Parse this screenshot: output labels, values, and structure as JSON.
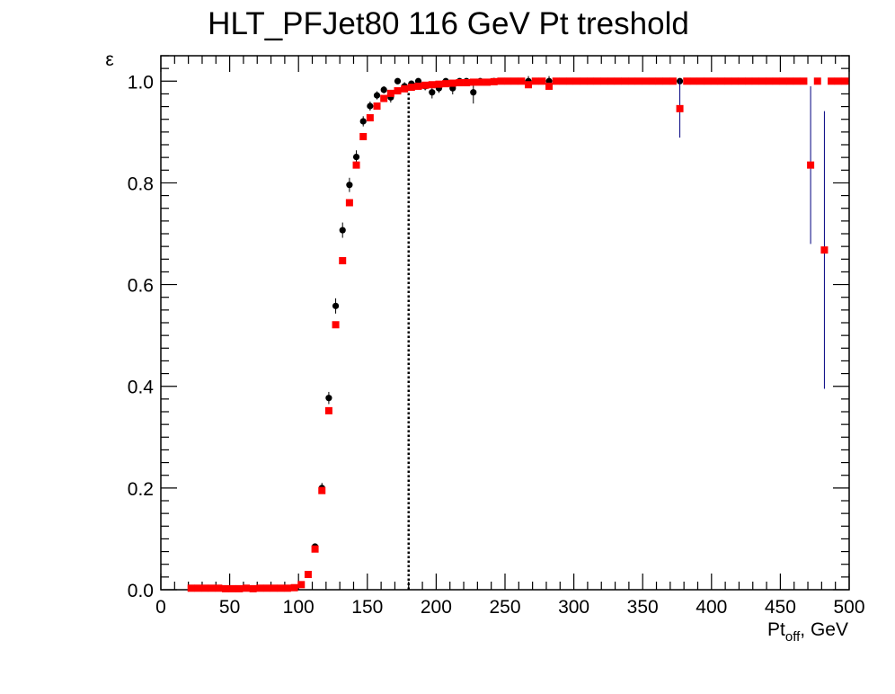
{
  "chart_data": {
    "type": "scatter",
    "title": "HLT_PFJet80 116 GeV Pt treshold",
    "xlabel_main": "Pt",
    "xlabel_sub": "off",
    "xlabel_unit": ", GeV",
    "ylabel": "ε",
    "xlim": [
      0,
      500
    ],
    "ylim": [
      0,
      1.05
    ],
    "x_ticks": [
      "0",
      "50",
      "100",
      "150",
      "200",
      "250",
      "300",
      "350",
      "400",
      "450",
      "500"
    ],
    "y_ticks": [
      "0.0",
      "0.2",
      "0.4",
      "0.6",
      "0.8",
      "1.0"
    ],
    "threshold_line_x": 180,
    "grid": false,
    "series": [
      {
        "color": "#000000",
        "marker": "circle",
        "error_color": "#000000",
        "points": [
          {
            "x": 112,
            "y": 0.085,
            "err": 0.005
          },
          {
            "x": 117,
            "y": 0.2,
            "err": 0.01
          },
          {
            "x": 122,
            "y": 0.377,
            "err": 0.012
          },
          {
            "x": 127,
            "y": 0.558,
            "err": 0.015
          },
          {
            "x": 132,
            "y": 0.707,
            "err": 0.015
          },
          {
            "x": 137,
            "y": 0.796,
            "err": 0.014
          },
          {
            "x": 142,
            "y": 0.851,
            "err": 0.013
          },
          {
            "x": 147,
            "y": 0.921,
            "err": 0.01
          },
          {
            "x": 152,
            "y": 0.951,
            "err": 0.009
          },
          {
            "x": 157,
            "y": 0.972,
            "err": 0.008
          },
          {
            "x": 162,
            "y": 0.983,
            "err": 0.007
          },
          {
            "x": 167,
            "y": 0.968,
            "err": 0.01
          },
          {
            "x": 172,
            "y": 1.0,
            "err": 0.0
          },
          {
            "x": 177,
            "y": 0.99,
            "err": 0.008
          },
          {
            "x": 182,
            "y": 0.995,
            "err": 0.006
          },
          {
            "x": 187,
            "y": 1.0,
            "err": 0.0
          },
          {
            "x": 192,
            "y": 0.99,
            "err": 0.008
          },
          {
            "x": 197,
            "y": 0.978,
            "err": 0.012
          },
          {
            "x": 202,
            "y": 0.986,
            "err": 0.009
          },
          {
            "x": 207,
            "y": 1.0,
            "err": 0.0
          },
          {
            "x": 212,
            "y": 0.986,
            "err": 0.012
          },
          {
            "x": 217,
            "y": 1.0,
            "err": 0.0
          },
          {
            "x": 222,
            "y": 1.0,
            "err": 0.0
          },
          {
            "x": 227,
            "y": 0.978,
            "err": 0.022
          },
          {
            "x": 232,
            "y": 1.0,
            "err": 0.0
          },
          {
            "x": 242,
            "y": 1.0,
            "err": 0.0
          },
          {
            "x": 267,
            "y": 1.0,
            "err": 0.01
          },
          {
            "x": 282,
            "y": 1.0,
            "err": 0.01
          },
          {
            "x": 377,
            "y": 1.0,
            "err": 0.0
          }
        ]
      },
      {
        "color": "#ff0000",
        "marker": "square",
        "error_color": "#000080",
        "points": [
          {
            "x": 22,
            "y": 0.003
          },
          {
            "x": 27,
            "y": 0.003
          },
          {
            "x": 32,
            "y": 0.003
          },
          {
            "x": 37,
            "y": 0.003
          },
          {
            "x": 42,
            "y": 0.003
          },
          {
            "x": 47,
            "y": 0.002
          },
          {
            "x": 52,
            "y": 0.002
          },
          {
            "x": 57,
            "y": 0.002
          },
          {
            "x": 62,
            "y": 0.003
          },
          {
            "x": 67,
            "y": 0.002
          },
          {
            "x": 72,
            "y": 0.003
          },
          {
            "x": 77,
            "y": 0.003
          },
          {
            "x": 82,
            "y": 0.003
          },
          {
            "x": 87,
            "y": 0.003
          },
          {
            "x": 92,
            "y": 0.003
          },
          {
            "x": 97,
            "y": 0.004
          },
          {
            "x": 102,
            "y": 0.01
          },
          {
            "x": 107,
            "y": 0.03
          },
          {
            "x": 112,
            "y": 0.08
          },
          {
            "x": 117,
            "y": 0.195
          },
          {
            "x": 122,
            "y": 0.352
          },
          {
            "x": 127,
            "y": 0.521
          },
          {
            "x": 132,
            "y": 0.647
          },
          {
            "x": 137,
            "y": 0.761
          },
          {
            "x": 142,
            "y": 0.835
          },
          {
            "x": 147,
            "y": 0.891
          },
          {
            "x": 152,
            "y": 0.928
          },
          {
            "x": 157,
            "y": 0.951
          },
          {
            "x": 162,
            "y": 0.966
          },
          {
            "x": 167,
            "y": 0.976
          },
          {
            "x": 172,
            "y": 0.981
          },
          {
            "x": 177,
            "y": 0.985
          },
          {
            "x": 182,
            "y": 0.988
          },
          {
            "x": 187,
            "y": 0.99
          },
          {
            "x": 192,
            "y": 0.992
          },
          {
            "x": 197,
            "y": 0.993
          },
          {
            "x": 202,
            "y": 0.994
          },
          {
            "x": 207,
            "y": 0.995
          },
          {
            "x": 212,
            "y": 0.996
          },
          {
            "x": 217,
            "y": 0.997
          },
          {
            "x": 222,
            "y": 0.997
          },
          {
            "x": 227,
            "y": 0.998
          },
          {
            "x": 232,
            "y": 0.998
          },
          {
            "x": 237,
            "y": 0.998
          },
          {
            "x": 242,
            "y": 0.999
          },
          {
            "x": 247,
            "y": 1.0
          },
          {
            "x": 252,
            "y": 1.0
          },
          {
            "x": 257,
            "y": 1.0
          },
          {
            "x": 262,
            "y": 1.0
          },
          {
            "x": 267,
            "y": 0.993
          },
          {
            "x": 272,
            "y": 1.0
          },
          {
            "x": 277,
            "y": 1.0
          },
          {
            "x": 282,
            "y": 0.99
          },
          {
            "x": 287,
            "y": 1.0
          },
          {
            "x": 292,
            "y": 1.0
          },
          {
            "x": 297,
            "y": 1.0
          },
          {
            "x": 302,
            "y": 1.0
          },
          {
            "x": 307,
            "y": 1.0
          },
          {
            "x": 312,
            "y": 1.0
          },
          {
            "x": 317,
            "y": 1.0
          },
          {
            "x": 322,
            "y": 1.0
          },
          {
            "x": 327,
            "y": 1.0
          },
          {
            "x": 332,
            "y": 1.0
          },
          {
            "x": 337,
            "y": 1.0
          },
          {
            "x": 342,
            "y": 1.0
          },
          {
            "x": 347,
            "y": 1.0
          },
          {
            "x": 352,
            "y": 1.0
          },
          {
            "x": 357,
            "y": 1.0
          },
          {
            "x": 362,
            "y": 1.0
          },
          {
            "x": 367,
            "y": 1.0
          },
          {
            "x": 372,
            "y": 1.0
          },
          {
            "x": 377,
            "y": 0.946,
            "err": 0.057
          },
          {
            "x": 382,
            "y": 1.0
          },
          {
            "x": 387,
            "y": 1.0
          },
          {
            "x": 392,
            "y": 1.0
          },
          {
            "x": 397,
            "y": 1.0
          },
          {
            "x": 402,
            "y": 1.0
          },
          {
            "x": 407,
            "y": 1.0
          },
          {
            "x": 412,
            "y": 1.0
          },
          {
            "x": 417,
            "y": 1.0
          },
          {
            "x": 422,
            "y": 1.0
          },
          {
            "x": 427,
            "y": 1.0
          },
          {
            "x": 432,
            "y": 1.0
          },
          {
            "x": 437,
            "y": 1.0
          },
          {
            "x": 442,
            "y": 1.0
          },
          {
            "x": 447,
            "y": 1.0
          },
          {
            "x": 452,
            "y": 1.0
          },
          {
            "x": 457,
            "y": 1.0
          },
          {
            "x": 462,
            "y": 1.0
          },
          {
            "x": 467,
            "y": 1.0
          },
          {
            "x": 472,
            "y": 0.835,
            "err": 0.155
          },
          {
            "x": 477,
            "y": 1.0
          },
          {
            "x": 482,
            "y": 0.668,
            "err": 0.273
          },
          {
            "x": 487,
            "y": 1.0
          },
          {
            "x": 492,
            "y": 1.0
          },
          {
            "x": 497,
            "y": 1.0
          }
        ]
      }
    ]
  }
}
